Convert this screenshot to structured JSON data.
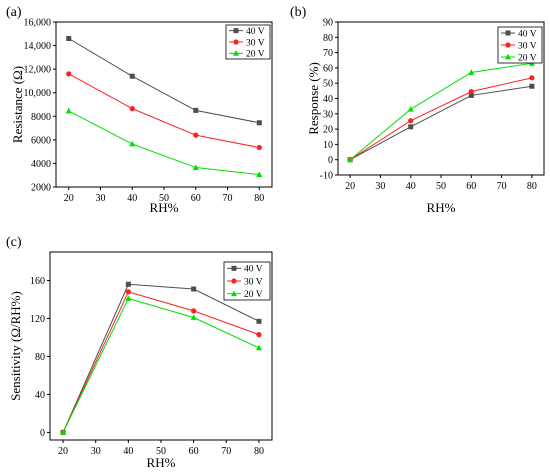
{
  "chart_data": [
    {
      "panel": "(a)",
      "type": "line",
      "x": [
        20,
        40,
        60,
        80
      ],
      "xlabel": "RH%",
      "ylabel": "Resistance (Ω)",
      "xticks": [
        20,
        30,
        40,
        50,
        60,
        70,
        80
      ],
      "xlim": [
        16,
        84
      ],
      "yticks": [
        2000,
        4000,
        6000,
        8000,
        10000,
        12000,
        14000,
        16000
      ],
      "ytick_labels": [
        "2000",
        "4000",
        "6000",
        "8000",
        "10,000",
        "12,000",
        "14,000",
        "16,000"
      ],
      "ylim": [
        2000,
        16000
      ],
      "legend": "top-right",
      "grid": false,
      "series": [
        {
          "name": "40 V",
          "values": [
            14600,
            11400,
            8500,
            7450
          ],
          "color": "#4d4d4d",
          "marker": "square"
        },
        {
          "name": "30 V",
          "values": [
            11600,
            8650,
            6400,
            5350
          ],
          "color": "#ff2020",
          "marker": "circle"
        },
        {
          "name": "20 V",
          "values": [
            8450,
            5650,
            3650,
            3050
          ],
          "color": "#00e000",
          "marker": "triangle"
        }
      ]
    },
    {
      "panel": "(b)",
      "type": "line",
      "x": [
        20,
        40,
        60,
        80
      ],
      "xlabel": "RH%",
      "ylabel": "Response (%)",
      "xticks": [
        20,
        30,
        40,
        50,
        60,
        70,
        80
      ],
      "xlim": [
        16,
        84
      ],
      "yticks": [
        -10,
        0,
        10,
        20,
        30,
        40,
        50,
        60,
        70,
        80,
        90
      ],
      "ytick_labels": [
        "-10",
        "0",
        "10",
        "20",
        "30",
        "40",
        "50",
        "60",
        "70",
        "80",
        "90"
      ],
      "ylim": [
        -10,
        90
      ],
      "legend": "top-right",
      "grid": false,
      "series": [
        {
          "name": "40 V",
          "values": [
            0,
            21.5,
            42,
            48
          ],
          "color": "#4d4d4d",
          "marker": "square"
        },
        {
          "name": "30 V",
          "values": [
            0,
            25.5,
            44.5,
            53.5
          ],
          "color": "#ff2020",
          "marker": "circle"
        },
        {
          "name": "20 V",
          "values": [
            0,
            33,
            57,
            63
          ],
          "color": "#00e000",
          "marker": "triangle"
        }
      ]
    },
    {
      "panel": "(c)",
      "type": "line",
      "x": [
        20,
        40,
        60,
        80
      ],
      "xlabel": "RH%",
      "ylabel": "Sensitivity (Ω/RH%)",
      "xticks": [
        20,
        30,
        40,
        50,
        60,
        70,
        80
      ],
      "xlim": [
        16,
        84
      ],
      "yticks": [
        0,
        40,
        80,
        120,
        160
      ],
      "ytick_labels": [
        "0",
        "40",
        "80",
        "120",
        "160"
      ],
      "ylim": [
        -8,
        190
      ],
      "legend": "top-right",
      "grid": false,
      "series": [
        {
          "name": "40 V",
          "values": [
            0,
            156,
            151,
            117
          ],
          "color": "#4d4d4d",
          "marker": "square"
        },
        {
          "name": "30 V",
          "values": [
            0,
            148,
            128,
            103
          ],
          "color": "#ff2020",
          "marker": "circle"
        },
        {
          "name": "20 V",
          "values": [
            0,
            141,
            121,
            89
          ],
          "color": "#00e000",
          "marker": "triangle"
        }
      ]
    }
  ]
}
